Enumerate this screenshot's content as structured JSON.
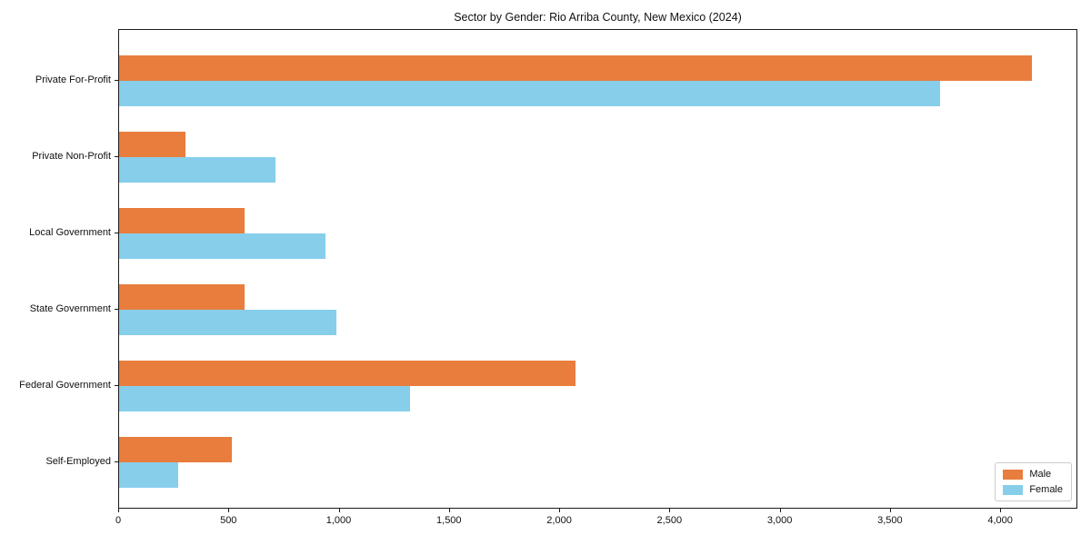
{
  "chart_data": {
    "type": "bar",
    "orientation": "horizontal",
    "title": "Sector by Gender: Rio Arriba County, New Mexico (2024)",
    "categories": [
      "Private For-Profit",
      "Private Non-Profit",
      "Local Government",
      "State Government",
      "Federal Government",
      "Self-Employed"
    ],
    "series": [
      {
        "name": "Male",
        "color": "#e87d3d",
        "values": [
          4140,
          300,
          570,
          570,
          2070,
          510
        ]
      },
      {
        "name": "Female",
        "color": "#87ceeb",
        "values": [
          3725,
          710,
          935,
          985,
          1320,
          270
        ]
      }
    ],
    "xlabel": "",
    "ylabel": "",
    "xlim": [
      0,
      4350
    ],
    "xticks": [
      0,
      500,
      1000,
      1500,
      2000,
      2500,
      3000,
      3500,
      4000
    ],
    "xtick_labels": [
      "0",
      "500",
      "1,000",
      "1,500",
      "2,000",
      "2,500",
      "3,000",
      "3,500",
      "4,000"
    ],
    "grid": false,
    "legend_position": "lower right",
    "colors": {
      "spine": "#1a1a1a",
      "text": "#111111",
      "legend_border": "#cccccc"
    }
  }
}
